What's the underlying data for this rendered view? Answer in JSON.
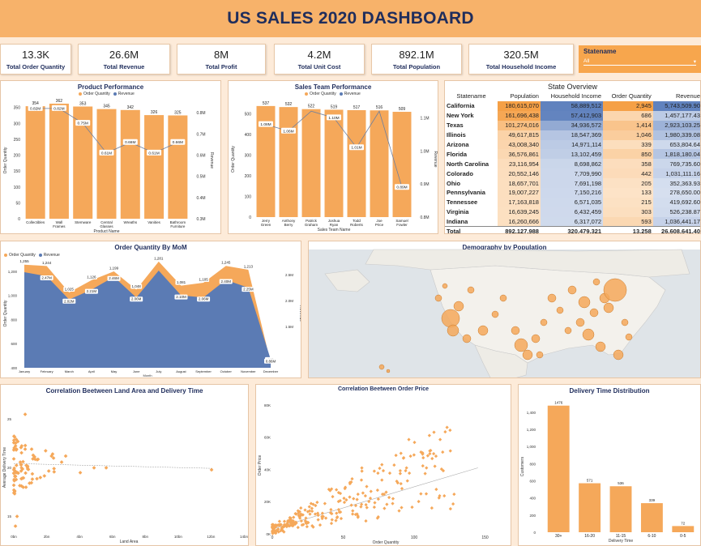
{
  "title": "US SALES 2020 DASHBOARD",
  "kpis": [
    {
      "value": "13.3K",
      "label": "Total Order Quantity"
    },
    {
      "value": "26.6M",
      "label": "Total Revenue"
    },
    {
      "value": "8M",
      "label": "Total Profit"
    },
    {
      "value": "4.2M",
      "label": "Total Unit Cost"
    },
    {
      "value": "892.1M",
      "label": "Total Population"
    },
    {
      "value": "320.5M",
      "label": "Total Household Income"
    }
  ],
  "slicer": {
    "title": "Statename",
    "value": "All"
  },
  "colors": {
    "orange": "#f5a85a",
    "navy": "#1f2d5c",
    "blue": "#5b7bb4",
    "panel_border": "#e6c5a6"
  },
  "legend": {
    "order_quantity": "Order Quantity",
    "revenue": "Revenue"
  },
  "product_chart": {
    "title": "Product Performance",
    "xlabel": "Product Name",
    "ylabel": "Order Quantity",
    "y2label": "Revenue",
    "y_ticks": [
      "0",
      "50",
      "100",
      "150",
      "200",
      "250",
      "300",
      "350"
    ],
    "y2_ticks": [
      "0.3M",
      "0.4M",
      "0.5M",
      "0.6M",
      "0.7M",
      "0.8M"
    ],
    "categories": [
      "Collectibles",
      "Wall Frames",
      "Stemware",
      "Central Glasses",
      "Wreaths",
      "Vanities",
      "Bathroom Furniture"
    ],
    "values": [
      354,
      362,
      353,
      345,
      342,
      326,
      325
    ],
    "value_labels": [
      "354",
      "362",
      "353",
      "345",
      "342",
      "326",
      "325"
    ],
    "revenue": [
      0.82,
      0.82,
      0.75,
      0.61,
      0.66,
      0.61,
      0.66
    ],
    "revenue_labels": [
      "0.82M",
      "0.82M",
      "0.75M",
      "0.61M",
      "0.66M",
      "0.61M",
      "0.66M"
    ]
  },
  "sales_chart": {
    "title": "Sales Team Performance",
    "xlabel": "Sales Team Name",
    "ylabel": "Order Quantity",
    "y2label": "Revenue",
    "y_ticks": [
      "0",
      "100",
      "200",
      "300",
      "400",
      "500"
    ],
    "y2_ticks": [
      "0.8M",
      "0.9M",
      "1.0M",
      "1.1M"
    ],
    "categories": [
      "Jerry Green",
      "Anthony Berry",
      "Patrick Graham",
      "Joshua Ryan",
      "Todd Roberts",
      "Joe Price",
      "Samuel Fowler"
    ],
    "values": [
      537,
      532,
      522,
      519,
      517,
      516,
      509
    ],
    "value_labels": [
      "537",
      "532",
      "522",
      "519",
      "517",
      "516",
      "509"
    ],
    "revenue": [
      1.08,
      1.06,
      1.12,
      1.1,
      1.01,
      1.12,
      0.89
    ],
    "revenue_labels": [
      "1.08M",
      "1.06M",
      "",
      "1.10M",
      "1.01M",
      "",
      "0.89M"
    ]
  },
  "state_table": {
    "title": "State Overview",
    "headers": [
      "Statename",
      "Population",
      "Household Income",
      "Order Quantity",
      "Revenue"
    ],
    "rows": [
      [
        "California",
        "180,615,070",
        "58,889,512",
        "2,945",
        "5,743,509.90"
      ],
      [
        "New York",
        "161,696,438",
        "57,412,903",
        "686",
        "1,457,177.43"
      ],
      [
        "Texas",
        "101,274,016",
        "34,936,572",
        "1,414",
        "2,923,103.25"
      ],
      [
        "Illinois",
        "49,617,815",
        "18,547,369",
        "1,046",
        "1,980,339.08"
      ],
      [
        "Arizona",
        "43,008,340",
        "14,971,114",
        "339",
        "653,804.64"
      ],
      [
        "Florida",
        "36,576,861",
        "13,102,459",
        "850",
        "1,818,180.04"
      ],
      [
        "North Carolina",
        "23,116,954",
        "8,698,862",
        "358",
        "769,735.60"
      ],
      [
        "Colorado",
        "20,552,146",
        "7,709,990",
        "442",
        "1,031,111.16"
      ],
      [
        "Ohio",
        "18,657,701",
        "7,691,198",
        "205",
        "352,363.93"
      ],
      [
        "Pennsylvania",
        "19,007,227",
        "7,150,216",
        "133",
        "278,650.00"
      ],
      [
        "Tennessee",
        "17,163,818",
        "6,571,035",
        "215",
        "419,692.60"
      ],
      [
        "Virginia",
        "16,639,245",
        "6,432,459",
        "303",
        "526,238.87"
      ],
      [
        "Indiana",
        "16,260,666",
        "6,317,072",
        "593",
        "1,036,441.17"
      ]
    ],
    "total": [
      "Total",
      "892,127,988",
      "320,479,321",
      "13,258",
      "26,608,641.40"
    ],
    "pop_num": [
      180.6,
      161.7,
      101.3,
      49.6,
      43.0,
      36.6,
      23.1,
      20.6,
      18.7,
      19.0,
      17.2,
      16.6,
      16.3
    ],
    "inc_num": [
      58.9,
      57.4,
      34.9,
      18.5,
      15.0,
      13.1,
      8.7,
      7.7,
      7.7,
      7.2,
      6.6,
      6.4,
      6.3
    ],
    "oq_num": [
      2945,
      686,
      1414,
      1046,
      339,
      850,
      358,
      442,
      205,
      133,
      215,
      303,
      593
    ],
    "rev_num": [
      5.74,
      1.46,
      2.92,
      1.98,
      0.65,
      1.82,
      0.77,
      1.03,
      0.35,
      0.28,
      0.42,
      0.53,
      1.04
    ]
  },
  "mom_chart": {
    "title": "Order Quantity By MoM",
    "xlabel": "Month",
    "ylabel": "Order Quantity",
    "y2label": "Revenue",
    "y_ticks": [
      "400",
      "600",
      "800",
      "1,000",
      "1,200"
    ],
    "y2_ticks": [
      "1.5M",
      "2.0M",
      "2.5M"
    ],
    "months": [
      "January",
      "February",
      "March",
      "April",
      "May",
      "June",
      "July",
      "August",
      "September",
      "October",
      "November",
      "December"
    ],
    "values": [
      1255,
      1244,
      1025,
      1126,
      1199,
      1048,
      1281,
      1081,
      1105,
      1245,
      1213,
      441
    ],
    "value_labels": [
      "1,255",
      "1,244",
      "1,025",
      "1,126",
      "1,199",
      "1,048",
      "1,281",
      "1,081",
      "1,105",
      "1,245",
      "1,213",
      "441"
    ],
    "revenue": [
      2.55,
      2.47,
      2.02,
      2.21,
      2.46,
      2.06,
      2.58,
      2.1,
      2.06,
      2.4,
      2.25,
      0.86
    ],
    "revenue_labels": [
      "",
      "2.47M",
      "2.02M",
      "2.21M",
      "2.46M",
      "2.06M",
      "",
      "2.10M",
      "2.06M",
      "2.40M",
      "2.25M",
      "0.86M"
    ]
  },
  "map": {
    "title": "Demography by Population"
  },
  "land_chart": {
    "title": "Correlation Beetween Land Area and Delivery Time",
    "xlabel": "Land Area",
    "ylabel": "Average Delivery Time",
    "x_ticks": [
      "0bn",
      "2bn",
      "4bn",
      "6bn",
      "8bn",
      "10bn",
      "12bn",
      "14bn"
    ],
    "y_ticks": [
      "15",
      "20",
      "25"
    ]
  },
  "price_chart": {
    "title": "Correlation Beetween Order Price",
    "xlabel": "Order Quantity",
    "ylabel": "Order Price",
    "x_ticks": [
      "0",
      "50",
      "100",
      "150"
    ],
    "y_ticks": [
      "0K",
      "20K",
      "40K",
      "60K",
      "80K"
    ]
  },
  "delivery_chart": {
    "title": "Delivery Time Distribution",
    "xlabel": "Delivery Time",
    "ylabel": "Customers",
    "categories": [
      "30+",
      "16-20",
      "11-15",
      "6-10",
      "0-5"
    ],
    "values": [
      1476,
      571,
      536,
      339,
      72
    ],
    "value_labels": [
      "1476",
      "571",
      "536",
      "339",
      "72"
    ],
    "y_ticks": [
      "0",
      "200",
      "400",
      "600",
      "800",
      "1,000",
      "1,200",
      "1,400"
    ]
  }
}
